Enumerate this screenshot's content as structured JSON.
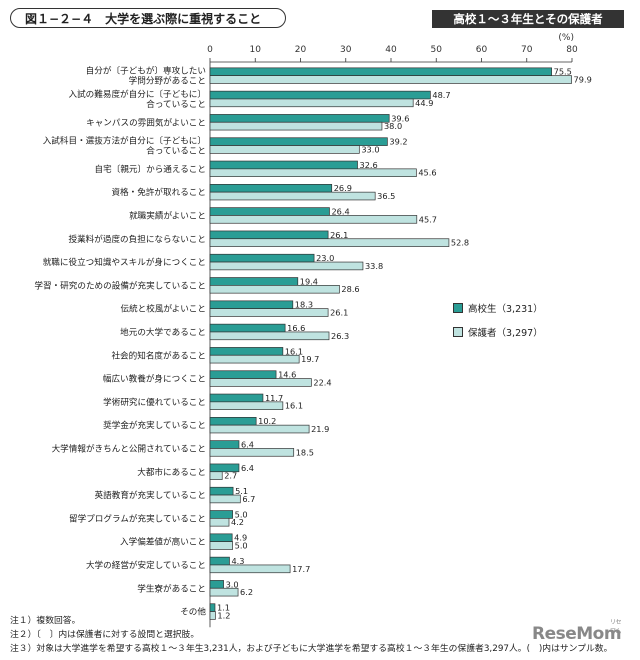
{
  "figure": {
    "title": "図１−２−４　大学を選ぶ際に重視すること",
    "badge": "高校１〜３年生とその保護者"
  },
  "notes": [
    "注１）複数回答。",
    "注２）〔　〕内は保護者に対する設問と選択肢。",
    "注３）対象は大学進学を希望する高校１〜３年生3,231人，および子どもに大学進学を希望する高校１〜３年生の保護者3,297人。(　)内はサンプル数。"
  ],
  "logo": {
    "text": "ReseMom",
    "sub": "リセマム"
  },
  "colors": {
    "student": "#2a9d95",
    "parent": "#bfe3e0",
    "border": "#333333"
  },
  "chart_data": {
    "type": "bar",
    "orientation": "horizontal",
    "title": "大学を選ぶ際に重視すること",
    "unit": "(%)",
    "xlim": [
      0,
      80
    ],
    "xticks": [
      0,
      10,
      20,
      30,
      40,
      50,
      60,
      70,
      80
    ],
    "legend_position": "right",
    "categories": [
      [
        "自分が〔子どもが〕専攻したい",
        "学問分野があること"
      ],
      [
        "入試の難易度が自分に〔子どもに〕",
        "合っていること"
      ],
      [
        "キャンパスの雰囲気がよいこと"
      ],
      [
        "入試科目・選抜方法が自分に〔子どもに〕",
        "合っていること"
      ],
      [
        "自宅〔親元〕から通えること"
      ],
      [
        "資格・免許が取れること"
      ],
      [
        "就職実績がよいこと"
      ],
      [
        "授業料が過度の負担にならないこと"
      ],
      [
        "就職に役立つ知識やスキルが身につくこと"
      ],
      [
        "学習・研究のための設備が充実していること"
      ],
      [
        "伝統と校風がよいこと"
      ],
      [
        "地元の大学であること"
      ],
      [
        "社会的知名度があること"
      ],
      [
        "幅広い教養が身につくこと"
      ],
      [
        "学術研究に優れていること"
      ],
      [
        "奨学金が充実していること"
      ],
      [
        "大学情報がきちんと公開されていること"
      ],
      [
        "大都市にあること"
      ],
      [
        "英語教育が充実していること"
      ],
      [
        "留学プログラムが充実していること"
      ],
      [
        "入学偏差値が高いこと"
      ],
      [
        "大学の経営が安定していること"
      ],
      [
        "学生寮があること"
      ],
      [
        "その他"
      ]
    ],
    "series": [
      {
        "name": "高校生（3,231）",
        "values": [
          75.5,
          48.7,
          39.6,
          39.2,
          32.6,
          26.9,
          26.4,
          26.1,
          23.0,
          19.4,
          18.3,
          16.6,
          16.1,
          14.6,
          11.7,
          10.2,
          6.4,
          6.4,
          5.1,
          5.0,
          4.9,
          4.3,
          3.0,
          1.1
        ]
      },
      {
        "name": "保護者（3,297）",
        "values": [
          79.9,
          44.9,
          38.0,
          33.0,
          45.6,
          36.5,
          45.7,
          52.8,
          33.8,
          28.6,
          26.1,
          26.3,
          19.7,
          22.4,
          16.1,
          21.9,
          18.5,
          2.7,
          6.7,
          4.2,
          5.0,
          17.7,
          6.2,
          1.2
        ]
      }
    ]
  }
}
